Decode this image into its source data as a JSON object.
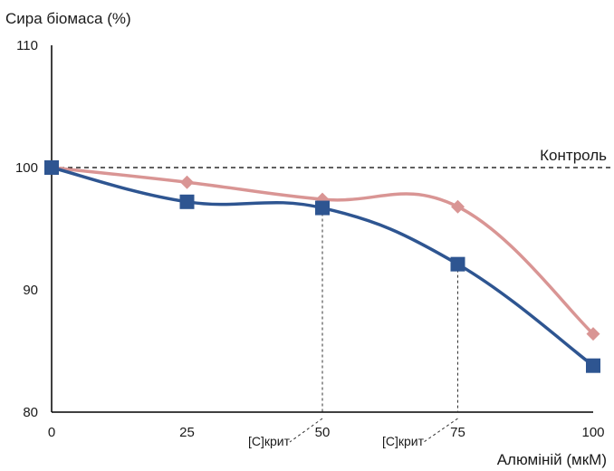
{
  "chart_data": {
    "type": "line",
    "ylabel": "Сира біомаса (%)",
    "xlabel": "Алюміній (мкМ)",
    "x": [
      0,
      25,
      50,
      75,
      100
    ],
    "xlim": [
      0,
      100
    ],
    "ylim": [
      80,
      110
    ],
    "x_ticks": [
      "0",
      "25",
      "50",
      "75",
      "100"
    ],
    "y_ticks": [
      "80",
      "90",
      "100",
      "110"
    ],
    "series": [
      {
        "marker": "square",
        "color": "#2e5591",
        "values": [
          100,
          97.2,
          96.7,
          92.1,
          83.8
        ]
      },
      {
        "marker": "diamond",
        "color": "#d99594",
        "values": [
          100,
          98.8,
          97.4,
          96.8,
          86.4
        ]
      }
    ],
    "reference_line": {
      "label": "Контроль",
      "y": 100,
      "style": "dashed"
    },
    "critical_markers": [
      {
        "label": "[C]крит",
        "x": 50
      },
      {
        "label": "[C]крит",
        "x": 75
      }
    ],
    "grid": false,
    "legend": "none"
  }
}
